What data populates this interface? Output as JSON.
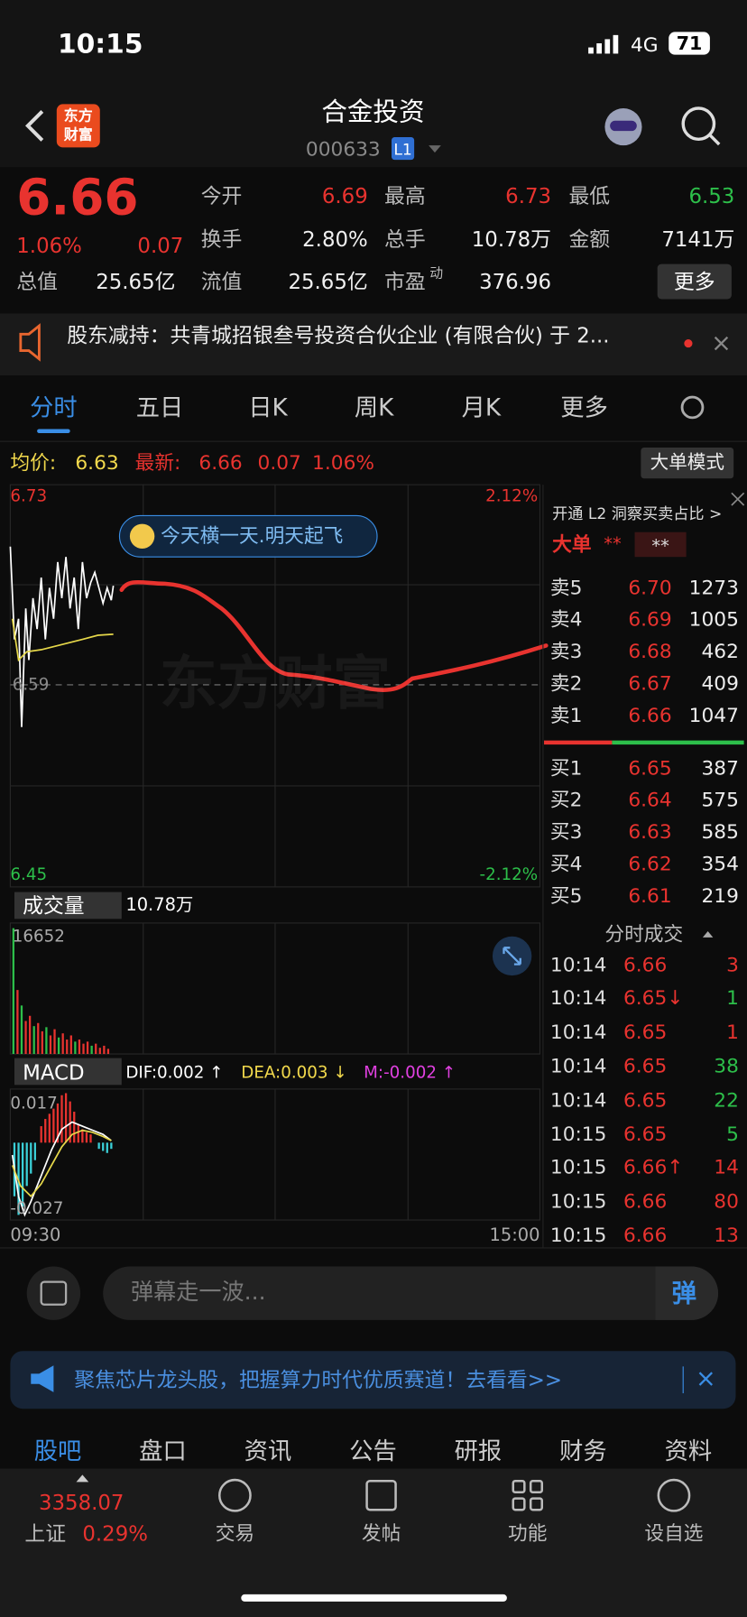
{
  "status": {
    "time": "10:15",
    "network": "4G",
    "battery": "71"
  },
  "header": {
    "logo_top": "东方",
    "logo_bottom": "财富",
    "title": "合金投资",
    "code": "000633",
    "level": "L1"
  },
  "quote": {
    "price": "6.66",
    "change_pct": "1.06%",
    "change": "0.07",
    "stats": [
      {
        "label": "今开",
        "value": "6.69"
      },
      {
        "label": "最高",
        "value": "6.73"
      },
      {
        "label": "最低",
        "value": "6.53"
      },
      {
        "label": "换手",
        "value": "2.80%"
      },
      {
        "label": "总手",
        "value": "10.78万"
      },
      {
        "label": "金额",
        "value": "7141万"
      },
      {
        "label": "总值",
        "value": "25.65亿"
      },
      {
        "label": "流值",
        "value": "25.65亿"
      },
      {
        "label": "市盈",
        "sup": "动",
        "value": "376.96"
      }
    ],
    "more": "更多"
  },
  "news": "股东减持：共青城招银叁号投资合伙企业 (有限合伙) 于 2...",
  "tabs": [
    "分时",
    "五日",
    "日K",
    "周K",
    "月K",
    "更多"
  ],
  "info": {
    "avg_label": "均价:",
    "avg": "6.63",
    "last_label": "最新:",
    "last": "6.66",
    "change": "0.07",
    "pct": "1.06%",
    "mode": "大单模式"
  },
  "chart": {
    "high": "6.73",
    "low": "6.45",
    "base": "6.59",
    "high_pct": "2.12%",
    "low_pct": "-2.12%",
    "bubble": "今天横一天.明天起飞",
    "watermark": "东方财富",
    "start": "09:30",
    "end": "15:00"
  },
  "volume": {
    "label": "成交量",
    "total": "10.78万",
    "max": "16652"
  },
  "macd": {
    "label": "MACD",
    "dif": "DIF:0.002 ↑",
    "dea": "DEA:0.003 ↓",
    "m": "M:-0.002 ↑",
    "max": "0.017",
    "min": "-0.027"
  },
  "book": {
    "promo": "开通 L2 洞察买卖占比 >",
    "big": "大单",
    "big_a": "**",
    "big_b": "**",
    "asks": [
      [
        "卖5",
        "6.70",
        "1273"
      ],
      [
        "卖4",
        "6.69",
        "1005"
      ],
      [
        "卖3",
        "6.68",
        "462"
      ],
      [
        "卖2",
        "6.67",
        "409"
      ],
      [
        "卖1",
        "6.66",
        "1047"
      ]
    ],
    "bids": [
      [
        "买1",
        "6.65",
        "387"
      ],
      [
        "买2",
        "6.64",
        "575"
      ],
      [
        "买3",
        "6.63",
        "585"
      ],
      [
        "买4",
        "6.62",
        "354"
      ],
      [
        "买5",
        "6.61",
        "219"
      ]
    ]
  },
  "trades": {
    "title": "分时成交",
    "rows": [
      [
        "10:14",
        "6.66",
        "3"
      ],
      [
        "10:14",
        "6.65↓",
        "1"
      ],
      [
        "10:14",
        "6.65",
        "1"
      ],
      [
        "10:14",
        "6.65",
        "38"
      ],
      [
        "10:14",
        "6.65",
        "22"
      ],
      [
        "10:15",
        "6.65",
        "5"
      ],
      [
        "10:15",
        "6.66↑",
        "14"
      ],
      [
        "10:15",
        "6.66",
        "80"
      ],
      [
        "10:15",
        "6.66",
        "13"
      ]
    ]
  },
  "comment": {
    "placeholder": "弹幕走一波...",
    "button": "弹"
  },
  "banner": "聚焦芯片龙头股，把握算力时代优质赛道！去看看>>",
  "bottom_tabs": [
    "股吧",
    "盘口",
    "资讯",
    "公告",
    "研报",
    "财务",
    "资料"
  ],
  "footer": {
    "index": "3358.07",
    "index_name": "上证",
    "index_pct": "0.29%",
    "items": [
      "交易",
      "发帖",
      "功能",
      "设自选"
    ]
  }
}
